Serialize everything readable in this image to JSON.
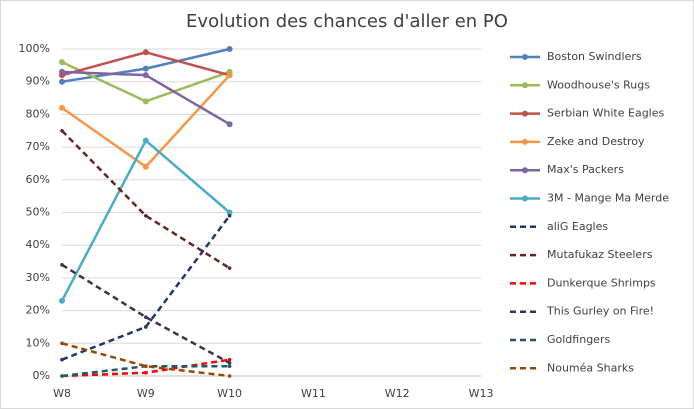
{
  "chart_data": {
    "type": "line",
    "title": "Evolution des chances d'aller en PO",
    "categories": [
      "W8",
      "W9",
      "W10",
      "W11",
      "W12",
      "W13"
    ],
    "ylim": [
      0,
      100
    ],
    "yticks": [
      {
        "value": 0,
        "label": "0%"
      },
      {
        "value": 10,
        "label": "10%"
      },
      {
        "value": 20,
        "label": "20%"
      },
      {
        "value": 30,
        "label": "30%"
      },
      {
        "value": 40,
        "label": "40%"
      },
      {
        "value": 50,
        "label": "50%"
      },
      {
        "value": 60,
        "label": "60%"
      },
      {
        "value": 70,
        "label": "70%"
      },
      {
        "value": 80,
        "label": "80%"
      },
      {
        "value": 90,
        "label": "90%"
      },
      {
        "value": 100,
        "label": "100%"
      }
    ],
    "grid": true,
    "legend": "right",
    "series": [
      {
        "name": "Boston Swindlers",
        "color": "#4f81bd",
        "dashed": false,
        "values": [
          90,
          94,
          100,
          null,
          null,
          null
        ]
      },
      {
        "name": "Woodhouse's Rugs",
        "color": "#9bbb59",
        "dashed": false,
        "values": [
          96,
          84,
          93,
          null,
          null,
          null
        ]
      },
      {
        "name": "Serbian White Eagles",
        "color": "#c0504d",
        "dashed": false,
        "values": [
          92,
          99,
          92,
          null,
          null,
          null
        ]
      },
      {
        "name": "Zeke and Destroy",
        "color": "#f79646",
        "dashed": false,
        "values": [
          82,
          64,
          92,
          null,
          null,
          null
        ]
      },
      {
        "name": "Max's Packers",
        "color": "#8064a2",
        "dashed": false,
        "values": [
          93,
          92,
          77,
          null,
          null,
          null
        ]
      },
      {
        "name": "3M - Mange Ma Merde",
        "color": "#4bacc6",
        "dashed": false,
        "values": [
          23,
          72,
          50,
          null,
          null,
          null
        ]
      },
      {
        "name": "aliG Eagles",
        "color": "#1f3864",
        "dashed": true,
        "values": [
          5,
          15,
          49,
          null,
          null,
          null
        ]
      },
      {
        "name": "Mutafukaz Steelers",
        "color": "#632523",
        "dashed": true,
        "values": [
          75,
          49,
          33,
          null,
          null,
          null
        ]
      },
      {
        "name": "Dunkerque Shrimps",
        "color": "#ff0000",
        "dashed": true,
        "values": [
          0,
          1,
          5,
          null,
          null,
          null
        ]
      },
      {
        "name": "This Gurley on Fire!",
        "color": "#3f3151",
        "dashed": true,
        "values": [
          34,
          18,
          4,
          null,
          null,
          null
        ]
      },
      {
        "name": "Goldfingers",
        "color": "#215968",
        "dashed": true,
        "values": [
          0,
          3,
          3,
          null,
          null,
          null
        ]
      },
      {
        "name": "Nouméa Sharks",
        "color": "#974706",
        "dashed": true,
        "values": [
          10,
          3,
          0,
          null,
          null,
          null
        ]
      }
    ]
  }
}
